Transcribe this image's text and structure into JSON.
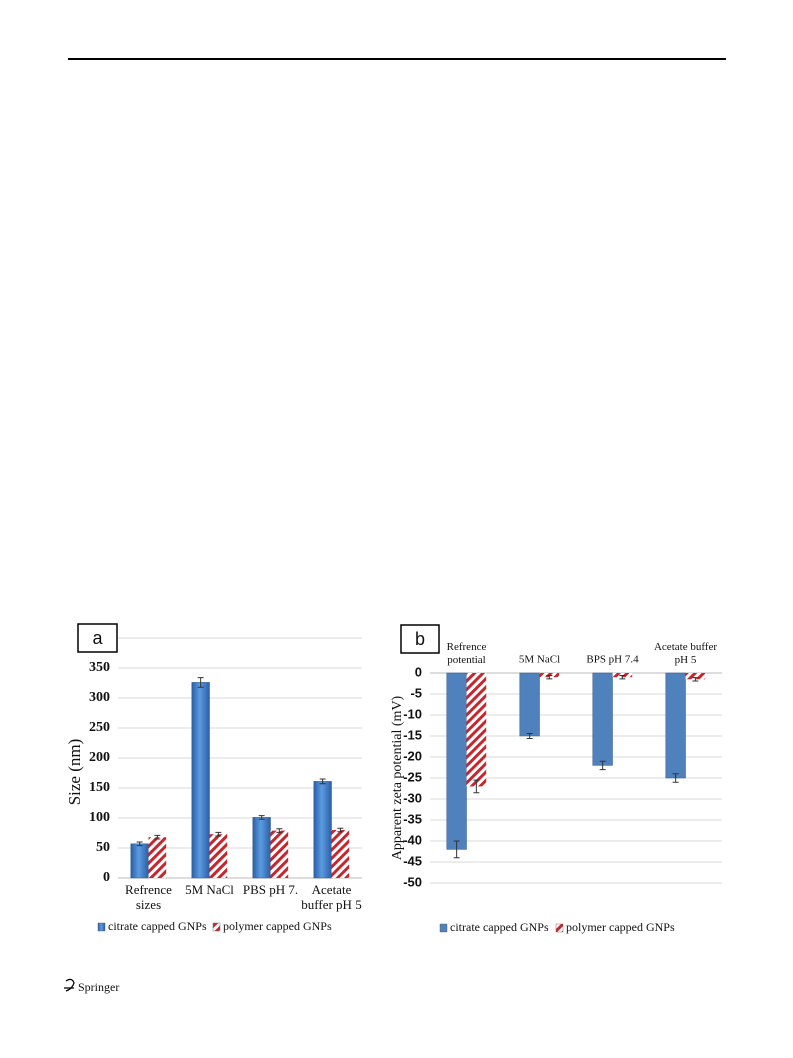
{
  "chart_data": [
    {
      "type": "bar",
      "panel_label": "a",
      "ylabel": "Size (nm)",
      "categories": [
        "Refrence\nsizes",
        "5M NaCl",
        "PBS pH 7.",
        "Acetate\nbuffer pH 5"
      ],
      "series": [
        {
          "name": "citrate capped GNPs",
          "color": "#3b79c9",
          "values": [
            57,
            326,
            101,
            161
          ],
          "errors": [
            3,
            8,
            3,
            4
          ]
        },
        {
          "name": "polymer capped GNPs",
          "color": "#c8262c",
          "values": [
            68,
            73,
            79,
            80
          ],
          "errors": [
            3,
            3,
            3,
            3
          ]
        }
      ],
      "ylim": [
        0,
        400
      ],
      "yticks": [
        0,
        50,
        100,
        150,
        200,
        250,
        300,
        350
      ],
      "grid": true
    },
    {
      "type": "bar",
      "panel_label": "b",
      "ylabel": "Apparent zeta potential (mV)",
      "categories": [
        "Refrence\npotential",
        "5M NaCl",
        "BPS pH 7.4",
        "Acetate buffer\npH 5"
      ],
      "series": [
        {
          "name": "citrate capped GNPs",
          "color": "#4f81bd",
          "values": [
            -42,
            -15,
            -22,
            -25
          ],
          "errors": [
            2,
            0.6,
            1,
            1
          ]
        },
        {
          "name": "polymer capped GNPs",
          "color": "#c8262c",
          "values": [
            -27,
            -1,
            -1,
            -1.5
          ],
          "errors": [
            1.5,
            0.4,
            0.4,
            0.4
          ]
        }
      ],
      "ylim": [
        -50,
        0
      ],
      "yticks": [
        0,
        -5,
        -10,
        -15,
        -20,
        -25,
        -30,
        -35,
        -40,
        -45,
        -50
      ],
      "grid": true
    }
  ],
  "footer": "Springer"
}
